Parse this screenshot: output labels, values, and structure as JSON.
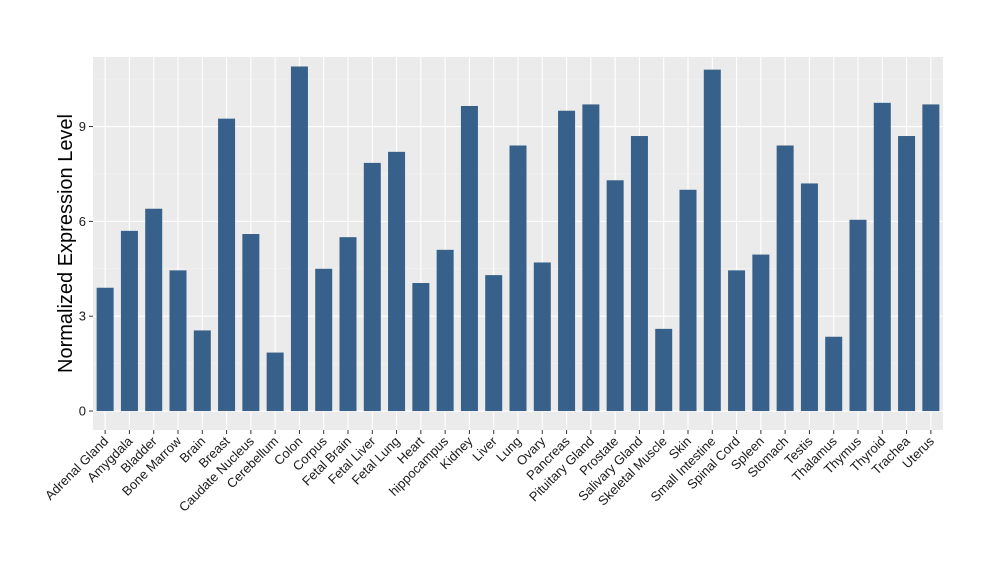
{
  "chart_data": {
    "type": "bar",
    "title": "",
    "xlabel": "",
    "ylabel": "Normalized Expression Level",
    "ylim": [
      -0.6,
      11.2
    ],
    "yticks": [
      0,
      3,
      6,
      9
    ],
    "grid": true,
    "legend": "none",
    "bar_color": "#37618a",
    "panel_background": "#ebebeb",
    "categories": [
      "Adrenal Gland",
      "Amygdala",
      "Bladder",
      "Bone Marrow",
      "Brain",
      "Breast",
      "Caudate Nucleus",
      "Cerebellum",
      "Colon",
      "Corpus",
      "Fetal Brain",
      "Fetal Liver",
      "Fetal Lung",
      "Heart",
      "hippocampus",
      "Kidney",
      "Liver",
      "Lung",
      "Ovary",
      "Pancreas",
      "Pituitary Gland",
      "Prostate",
      "Salivary Gland",
      "Skeletal Muscle",
      "Skin",
      "Small Intestine",
      "Spinal Cord",
      "Spleen",
      "Stomach",
      "Testis",
      "Thalamus",
      "Thymus",
      "Thyroid",
      "Trachea",
      "Uterus"
    ],
    "values": [
      3.9,
      5.7,
      6.4,
      4.45,
      2.55,
      9.25,
      5.6,
      1.85,
      10.9,
      4.5,
      5.5,
      7.85,
      8.2,
      4.05,
      5.1,
      9.65,
      4.3,
      8.4,
      4.7,
      9.5,
      9.7,
      7.3,
      8.7,
      2.6,
      7.0,
      10.8,
      4.45,
      4.95,
      8.4,
      7.2,
      2.35,
      6.05,
      9.75,
      8.7,
      9.7
    ]
  }
}
